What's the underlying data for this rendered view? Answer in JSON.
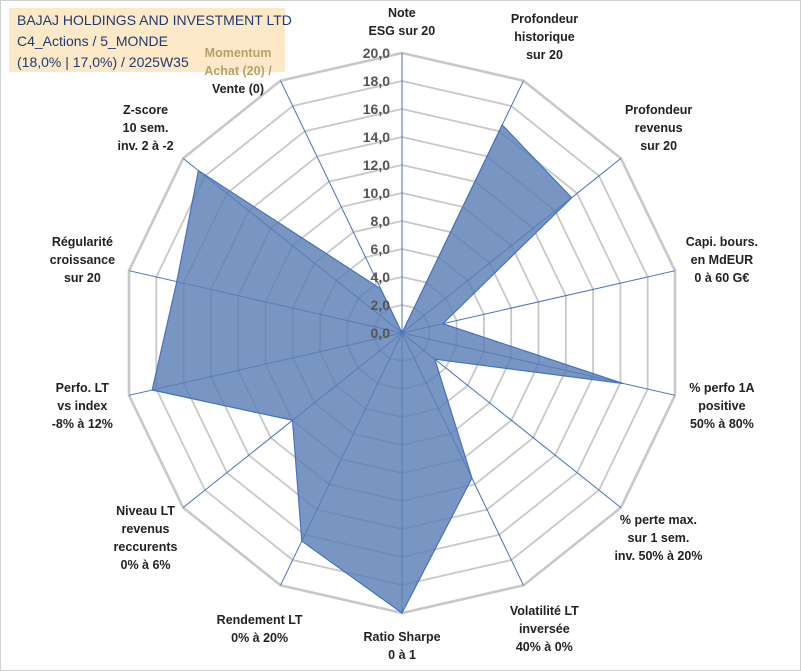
{
  "info": {
    "line1": "BAJAJ HOLDINGS AND INVESTMENT LTD",
    "line2": "C4_Actions / 5_MONDE",
    "line3": "(18,0% | 17,0%) / 2025W35"
  },
  "colors": {
    "fill": "#5b7fb5",
    "fill_opacity": 0.82,
    "series_line": "#4472c4",
    "grid": "#c8c8c8",
    "spokes": "#4472c4",
    "infobox_bg": "#fde9c8",
    "info_text": "#1f3b73"
  },
  "chart_data": {
    "type": "radar",
    "rmin": 0,
    "rmax": 20,
    "tick_step": 2,
    "tick_labels": [
      "0,0",
      "2,0",
      "4,0",
      "6,0",
      "8,0",
      "10,0",
      "12,0",
      "14,0",
      "16,0",
      "18,0",
      "20,0"
    ],
    "axes": [
      {
        "lines": [
          "Note",
          "ESG sur 20"
        ],
        "value": 0
      },
      {
        "lines": [
          "Profondeur",
          "historique",
          "sur 20"
        ],
        "value": 16.5
      },
      {
        "lines": [
          "Profondeur",
          "revenus",
          "sur 20"
        ],
        "value": 15.5
      },
      {
        "lines": [
          "Capi. bours.",
          "en MdEUR",
          "0 à 60 G€"
        ],
        "value": 3
      },
      {
        "lines": [
          "% perfo 1A",
          "positive",
          "50% à 80%"
        ],
        "value": 16.2
      },
      {
        "lines": [
          "% perte max.",
          "sur 1 sem.",
          "inv. 50% à 20%"
        ],
        "value": 3
      },
      {
        "lines": [
          "Volatilité LT",
          "inversée",
          "40% à 0%"
        ],
        "value": 11.5
      },
      {
        "lines": [
          "Ratio Sharpe",
          "0 à 1"
        ],
        "value": 20
      },
      {
        "lines": [
          "Rendement LT",
          "0% à 20%"
        ],
        "value": 16.5
      },
      {
        "lines": [
          "Niveau LT",
          "revenus",
          "reccurents",
          "0% à 6%"
        ],
        "value": 10
      },
      {
        "lines": [
          "Perfo. LT",
          "vs index",
          "-8% à 12%"
        ],
        "value": 18.3
      },
      {
        "lines": [
          "Régularité",
          "croissance",
          "sur 20"
        ],
        "value": 16.5
      },
      {
        "lines": [
          "Z-score",
          "10 sem.",
          "inv. 2 à -2"
        ],
        "value": 18.6
      },
      {
        "lines": [
          "Momentum",
          "Achat (20) /",
          "Vente (0)"
        ],
        "value": 3.5
      }
    ]
  }
}
